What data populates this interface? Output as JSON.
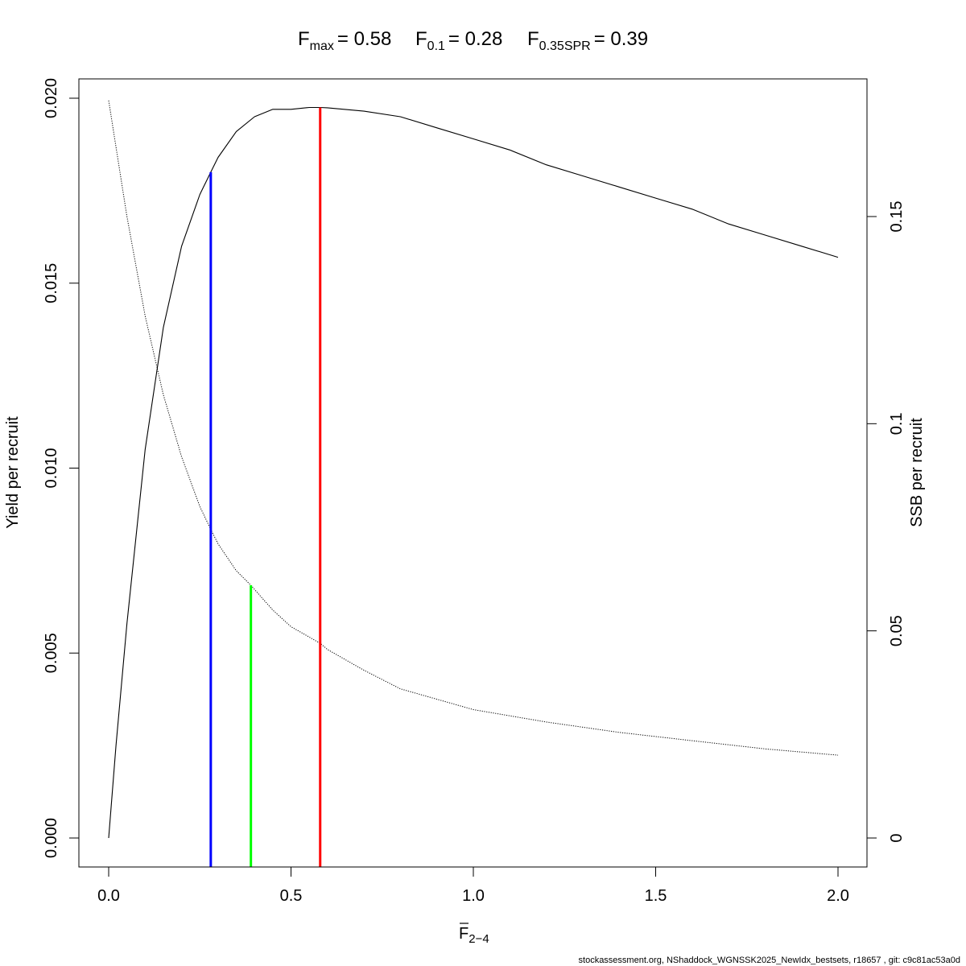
{
  "title": {
    "fmax": {
      "base": "F",
      "sub": "max",
      "value": "= 0.58"
    },
    "f01": {
      "base": "F",
      "sub": "0.1",
      "value": "= 0.28"
    },
    "fspr": {
      "base": "F",
      "sub": "0.35SPR",
      "value": "= 0.39"
    }
  },
  "footer": "stockassessment.org, NShaddock_WGNSSK2025_NewIdx_bestsets, r18657 , git: c9c81ac53a0d",
  "chart_data": {
    "type": "line",
    "xlabel": {
      "base": "F",
      "sub": "2−4",
      "overline": true
    },
    "ylabel_left": "Yield per recruit",
    "ylabel_right": "SSB per recruit",
    "xlim": [
      0,
      2
    ],
    "ylim_left": [
      0,
      0.02
    ],
    "ylim_right": [
      0,
      0.18
    ],
    "x_ticks": [
      "0.0",
      "0.5",
      "1.0",
      "1.5",
      "2.0"
    ],
    "y_left_ticks": [
      "0.000",
      "0.005",
      "0.010",
      "0.015",
      "0.020"
    ],
    "y_right_ticks": [
      "0",
      "0.05",
      "0.1",
      "0.15"
    ],
    "series": [
      {
        "axis": "left",
        "style": "solid",
        "color": "#000000",
        "x": [
          0,
          0.02,
          0.05,
          0.1,
          0.15,
          0.2,
          0.25,
          0.28,
          0.3,
          0.35,
          0.4,
          0.45,
          0.5,
          0.55,
          0.58,
          0.6,
          0.7,
          0.8,
          0.9,
          1.0,
          1.1,
          1.2,
          1.3,
          1.4,
          1.5,
          1.6,
          1.7,
          1.8,
          1.9,
          2.0
        ],
        "y": [
          0,
          0.0025,
          0.0058,
          0.0105,
          0.0138,
          0.016,
          0.0174,
          0.018,
          0.0184,
          0.0191,
          0.0195,
          0.0197,
          0.0197,
          0.01975,
          0.01975,
          0.01974,
          0.01965,
          0.0195,
          0.0192,
          0.0189,
          0.0186,
          0.0182,
          0.0179,
          0.0176,
          0.0173,
          0.017,
          0.0166,
          0.0163,
          0.016,
          0.0157
        ]
      },
      {
        "axis": "right",
        "style": "dotted",
        "color": "#000000",
        "x": [
          0,
          0.05,
          0.1,
          0.15,
          0.2,
          0.25,
          0.28,
          0.3,
          0.35,
          0.39,
          0.4,
          0.45,
          0.5,
          0.58,
          0.6,
          0.7,
          0.8,
          0.9,
          1.0,
          1.2,
          1.4,
          1.6,
          1.8,
          2.0
        ],
        "y": [
          0.178,
          0.15,
          0.126,
          0.107,
          0.092,
          0.08,
          0.0745,
          0.071,
          0.0645,
          0.061,
          0.06,
          0.055,
          0.051,
          0.047,
          0.0455,
          0.0405,
          0.036,
          0.0335,
          0.031,
          0.028,
          0.0255,
          0.0235,
          0.0215,
          0.02
        ]
      }
    ],
    "vlines": [
      {
        "name": "F0.1",
        "x": 0.28,
        "y_left": 0.018,
        "color": "#0000ff"
      },
      {
        "name": "F0.35SPR",
        "x": 0.39,
        "y_right": 0.061,
        "color": "#00ff00"
      },
      {
        "name": "Fmax",
        "x": 0.58,
        "y_left": 0.01975,
        "color": "#ff0000"
      }
    ],
    "grid": false,
    "legend": "none"
  }
}
